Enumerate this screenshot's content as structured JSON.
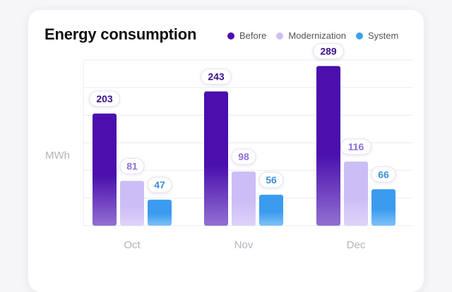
{
  "title": "Energy consumption",
  "chart_data": {
    "type": "bar",
    "title": "Energy consumption",
    "ylabel": "MWh",
    "xlabel": "",
    "categories": [
      "Oct",
      "Nov",
      "Dec"
    ],
    "series": [
      {
        "name": "Before",
        "values": [
          203,
          243,
          289
        ],
        "color": "#4a0fad",
        "label_color": "#3b0f8a"
      },
      {
        "name": "Modernization",
        "values": [
          81,
          98,
          116
        ],
        "color": "#cdbff5",
        "label_color": "#8f6fd8"
      },
      {
        "name": "System",
        "values": [
          47,
          56,
          66
        ],
        "color": "#3ea0ee",
        "label_color": "#3a8fd8"
      }
    ],
    "ylim": [
      0,
      300
    ],
    "grid": true,
    "legend": "top-right"
  }
}
